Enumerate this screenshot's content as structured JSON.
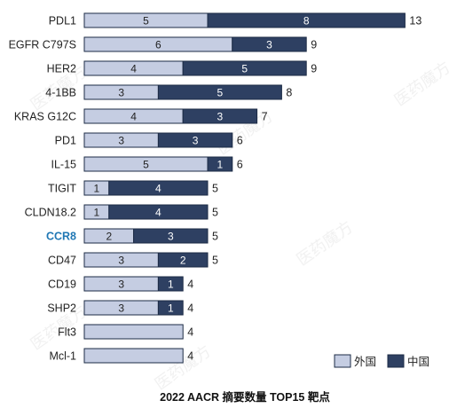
{
  "chart_data": {
    "type": "bar",
    "orientation": "horizontal",
    "stacked": true,
    "title": "2022 AACR 摘要数量 TOP15 靶点",
    "categories": [
      "PDL1",
      "EGFR C797S",
      "HER2",
      "4-1BB",
      "KRAS G12C",
      "PD1",
      "IL-15",
      "TIGIT",
      "CLDN18.2",
      "CCR8",
      "CD47",
      "CD19",
      "SHP2",
      "Flt3",
      "Mcl-1"
    ],
    "highlighted_category": "CCR8",
    "series": [
      {
        "name": "外国",
        "color": "#c5cde2",
        "values": [
          5,
          6,
          4,
          3,
          4,
          3,
          5,
          1,
          1,
          2,
          3,
          3,
          3,
          4,
          4
        ]
      },
      {
        "name": "中国",
        "color": "#2e4062",
        "values": [
          8,
          3,
          5,
          5,
          3,
          3,
          1,
          4,
          4,
          3,
          2,
          1,
          1,
          0,
          0
        ]
      }
    ],
    "totals": [
      13,
      9,
      9,
      8,
      7,
      6,
      6,
      5,
      5,
      5,
      5,
      4,
      4,
      4,
      4
    ],
    "legend_position": "bottom-right",
    "grid": false
  }
}
